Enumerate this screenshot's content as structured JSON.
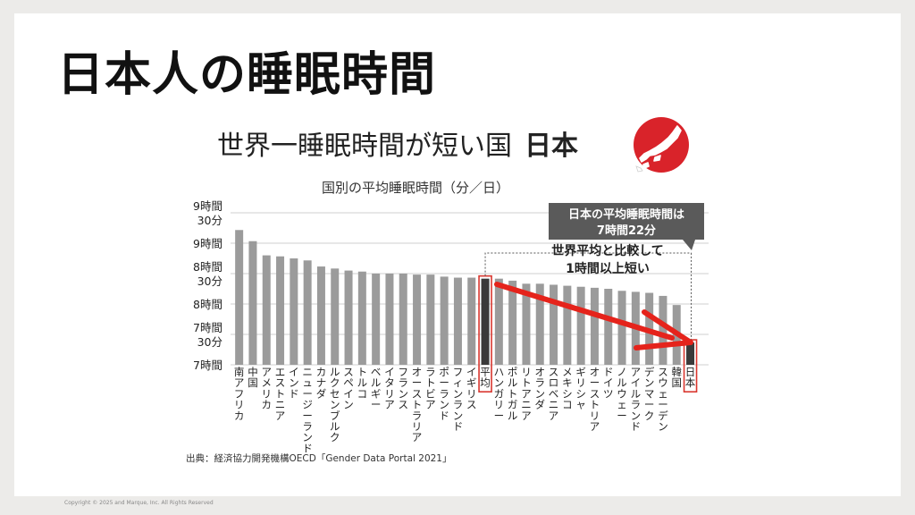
{
  "slide": {
    "title": "日本人の睡眠時間",
    "subtitle": "世界一睡眠時間が短い国",
    "subtitle_bold": "日本",
    "flag_icon": "japan-map-flag-icon",
    "source": "出典：経済協力開発機構OECD「Gender Data Portal 2021」",
    "copyright": "Copyright © 2025 and Marque, Inc. All Rights Reserved"
  },
  "colors": {
    "bar": "#9b9b9b",
    "highlight_bar": "#3a3a3a",
    "highlight_border": "#d9372f",
    "arrow": "#e5231b",
    "callout_bg": "#5a5a5a",
    "flag_red": "#d9232a"
  },
  "chart_data": {
    "type": "bar",
    "title": "国別の平均睡眠時間（分／日）",
    "unit": "分",
    "ylim": [
      420,
      580
    ],
    "yticks": [
      {
        "value": 420,
        "lines": [
          "7時間"
        ]
      },
      {
        "value": 450,
        "lines": [
          "7時間",
          "30分"
        ]
      },
      {
        "value": 480,
        "lines": [
          "8時間"
        ]
      },
      {
        "value": 510,
        "lines": [
          "8時間",
          "30分"
        ]
      },
      {
        "value": 540,
        "lines": [
          "9時間"
        ]
      },
      {
        "value": 570,
        "lines": [
          "9時間",
          "30分"
        ]
      }
    ],
    "grid": true,
    "categories": [
      "南アフリカ",
      "中国",
      "アメリカ",
      "エストニア",
      "インド",
      "ニュージーランド",
      "カナダ",
      "ルクセンブルク",
      "スペイン",
      "トルコ",
      "ベルギー",
      "イタリア",
      "フランス",
      "オーストラリア",
      "ラトビア",
      "ポーランド",
      "フィンランド",
      "イギリス",
      "平均",
      "ハンガリー",
      "ポルトガル",
      "リトアニア",
      "オランダ",
      "スロベニア",
      "メキシコ",
      "ギリシャ",
      "オーストリア",
      "ドイツ",
      "ノルウェー",
      "アイルランド",
      "デンマーク",
      "スウェーデン",
      "韓国",
      "日本"
    ],
    "values": [
      553,
      542,
      528,
      527,
      525,
      523,
      517,
      515,
      513,
      512,
      510,
      510,
      510,
      509,
      509,
      507,
      506,
      506,
      505,
      505,
      503,
      500,
      500,
      499,
      498,
      497,
      496,
      495,
      493,
      492,
      491,
      488,
      479,
      442
    ],
    "highlight": [
      "平均",
      "日本"
    ],
    "callout": [
      "日本の平均睡眠時間は",
      "7時間22分"
    ],
    "annotation": [
      "世界平均と比較して",
      "1時間以上短い"
    ]
  }
}
